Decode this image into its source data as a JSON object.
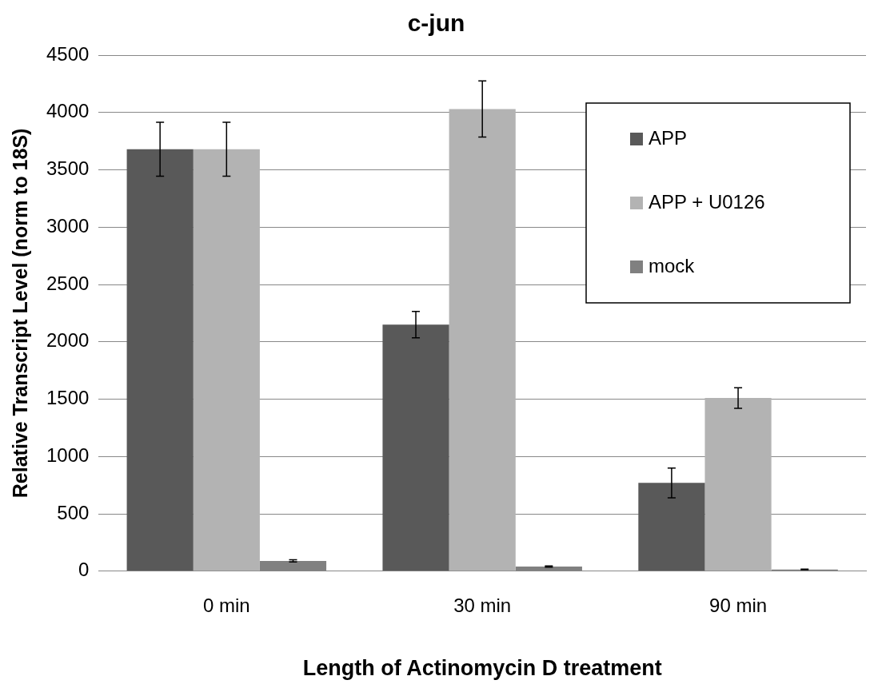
{
  "chart_data": {
    "type": "bar",
    "title": "c-jun",
    "xlabel": "Length of Actinomycin D treatment",
    "ylabel": "Relative Transcript Level (norm to 18S)",
    "categories": [
      "0 min",
      "30 min",
      "90 min"
    ],
    "series": [
      {
        "name": "APP",
        "color": "#595959",
        "values": [
          3680,
          2150,
          770
        ],
        "errors": [
          235,
          115,
          130
        ]
      },
      {
        "name": "APP + U0126",
        "color": "#b3b3b3",
        "values": [
          3680,
          4030,
          1510
        ],
        "errors": [
          235,
          245,
          90
        ]
      },
      {
        "name": "mock",
        "color": "#808080",
        "values": [
          90,
          40,
          15
        ],
        "errors": [
          10,
          5,
          3
        ]
      }
    ],
    "ylim": [
      0,
      4500
    ],
    "yticks": [
      0,
      500,
      1000,
      1500,
      2000,
      2500,
      3000,
      3500,
      4000,
      4500
    ],
    "grid": "y",
    "legend": "top right"
  }
}
